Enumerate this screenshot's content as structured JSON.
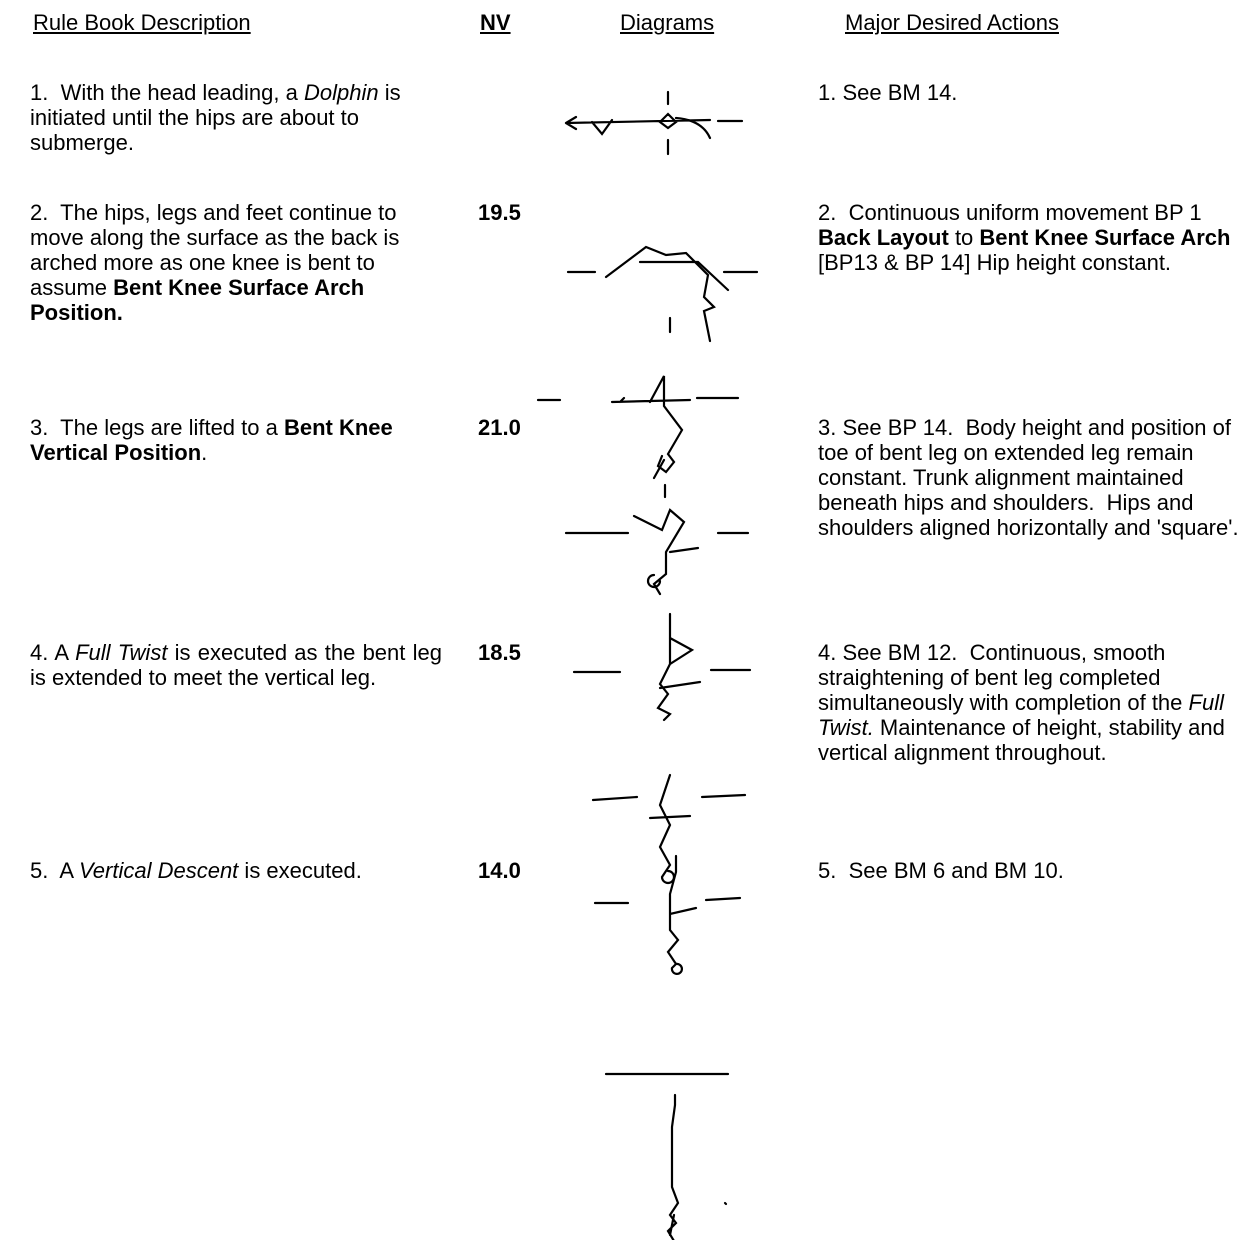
{
  "header": {
    "columns": [
      "Rule Book Description",
      "NV",
      "Diagrams",
      "Major Desired Actions"
    ]
  },
  "rows": [
    {
      "description": [
        {
          "text": "1.  With the head leading, a "
        },
        {
          "text": "Dolphin",
          "italic": true
        },
        {
          "text": " is initiated until the hips are about to submerge."
        }
      ],
      "actions": [
        {
          "text": "1. See BM 14."
        }
      ]
    },
    {
      "description": [
        {
          "text": "2.  The hips, legs and feet continue to move along the surface as the back is arched more as one knee is bent to assume "
        },
        {
          "text": "Bent Knee Surface Arch Position.",
          "bold": true
        }
      ],
      "nv": "19.5",
      "actions": [
        {
          "text": "2.  Continuous uniform movement BP 1 "
        },
        {
          "text": "Back Layout",
          "bold": true
        },
        {
          "text": " to "
        },
        {
          "text": "Bent Knee Surface Arch",
          "bold": true
        },
        {
          "text": " [BP13 & BP 14] Hip height constant."
        }
      ]
    },
    {
      "description": [
        {
          "text": "3.  The legs are lifted to a "
        },
        {
          "text": "Bent Knee Vertical Position",
          "bold": true
        },
        {
          "text": "."
        }
      ],
      "nv": "21.0",
      "actions": [
        {
          "text": "3. See BP 14.  Body height and position of toe of bent leg on extended leg remain constant. Trunk alignment maintained beneath hips and shoulders.  Hips and shoulders aligned horizontally and 'square'."
        }
      ]
    },
    {
      "description": [
        {
          "text": "4. A "
        },
        {
          "text": "Full Twist",
          "italic": true
        },
        {
          "text": " is executed as the bent leg is extended to meet the vertical leg."
        }
      ],
      "nv": "18.5",
      "actions": [
        {
          "text": "4. See BM 12.  Continuous, smooth straightening of bent leg completed simultaneously with completion of the "
        },
        {
          "text": "Full Twist.",
          "italic": true
        },
        {
          "text": " Maintenance of height, stability and vertical alignment throughout."
        }
      ]
    },
    {
      "description": [
        {
          "text": "5.  A "
        },
        {
          "text": "Vertical Descent",
          "italic": true
        },
        {
          "text": " is executed."
        }
      ],
      "nv": "14.0",
      "actions": [
        {
          "text": "5.  See BM 6 and BM 10."
        }
      ]
    }
  ]
}
